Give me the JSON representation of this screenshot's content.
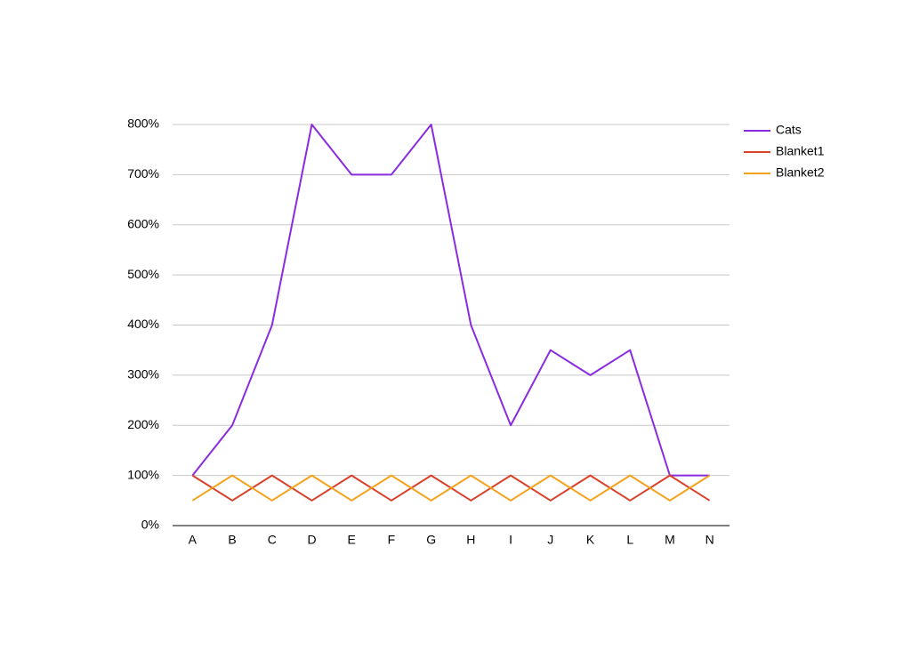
{
  "chart_data": {
    "type": "line",
    "categories": [
      "A",
      "B",
      "C",
      "D",
      "E",
      "F",
      "G",
      "H",
      "I",
      "J",
      "K",
      "L",
      "M",
      "N"
    ],
    "series": [
      {
        "name": "Cats",
        "color": "#8a2be2",
        "values": [
          100,
          200,
          400,
          800,
          700,
          700,
          800,
          400,
          200,
          350,
          300,
          350,
          100,
          100
        ]
      },
      {
        "name": "Blanket1",
        "color": "#d9412b",
        "values": [
          100,
          50,
          100,
          50,
          100,
          50,
          100,
          50,
          100,
          50,
          100,
          50,
          100,
          50
        ]
      },
      {
        "name": "Blanket2",
        "color": "#f5a21b",
        "values": [
          50,
          100,
          50,
          100,
          50,
          100,
          50,
          100,
          50,
          100,
          50,
          100,
          50,
          100
        ]
      }
    ],
    "ylim": [
      0,
      800
    ],
    "yticks": [
      {
        "value": 0,
        "label": "0%"
      },
      {
        "value": 100,
        "label": "100%"
      },
      {
        "value": 200,
        "label": "200%"
      },
      {
        "value": 300,
        "label": "300%"
      },
      {
        "value": 400,
        "label": "400%"
      },
      {
        "value": 500,
        "label": "500%"
      },
      {
        "value": 600,
        "label": "600%"
      },
      {
        "value": 700,
        "label": "700%"
      },
      {
        "value": 800,
        "label": "800%"
      }
    ],
    "grid": true,
    "legend": "right"
  }
}
